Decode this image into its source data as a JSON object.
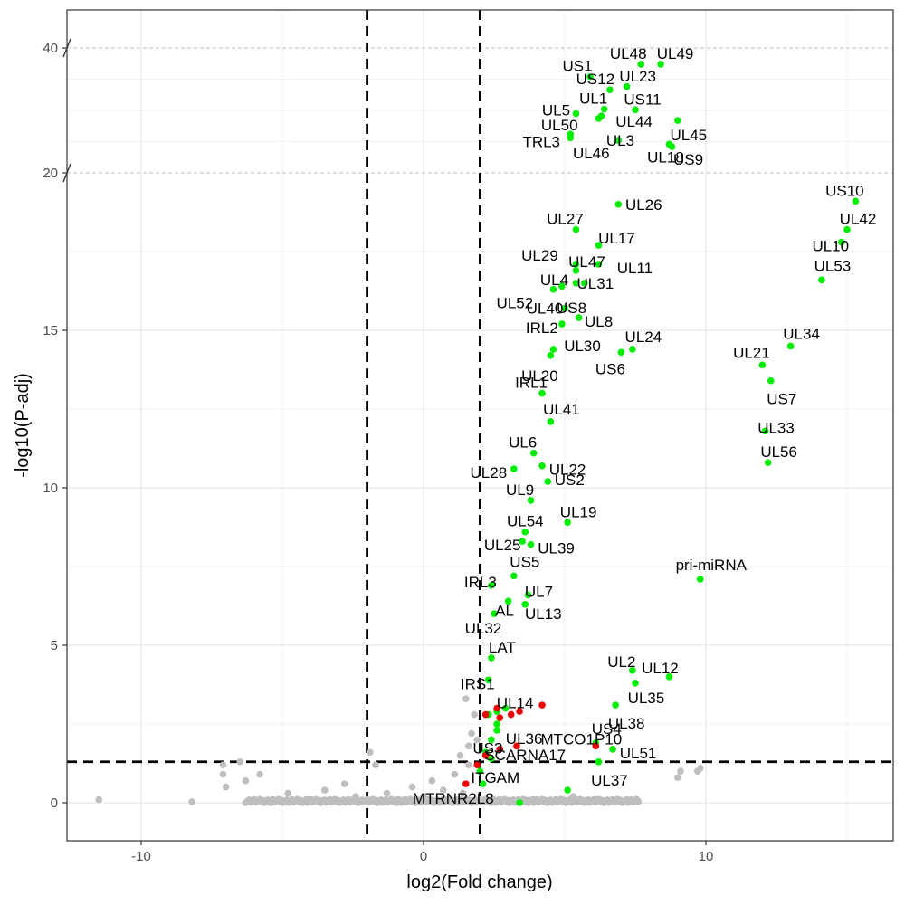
{
  "chart_data": {
    "type": "scatter",
    "title": "",
    "xlabel": "log2(Fold change)",
    "ylabel": "-log10(P-adj)",
    "xlim": [
      -12.5,
      16.5
    ],
    "x_ticks": [
      -10,
      0,
      10
    ],
    "x_tick_labels": [
      "-10",
      "0",
      "10"
    ],
    "y_ticks": [
      0,
      5,
      10,
      15,
      20,
      40
    ],
    "y_tick_labels": [
      "0",
      "5",
      "10",
      "15",
      "20",
      "40"
    ],
    "y_axis_break": {
      "note": "broken axis: upper segment spans 20 to 40",
      "lower_range": [
        0,
        20
      ],
      "upper_range": [
        20,
        40
      ]
    },
    "grid": true,
    "fold_change_threshold": [
      -2,
      2
    ],
    "p_threshold": 1.3,
    "colors": {
      "significant": "#00ee00",
      "highlight": "#ee0000",
      "not_significant": "#bebebe",
      "threshold_line": "#000000"
    },
    "series": [
      {
        "color_key": "significant",
        "points": [
          {
            "label": "UL48",
            "x": 7.7,
            "y": 37.4
          },
          {
            "label": "UL49",
            "x": 8.4,
            "y": 37.4
          },
          {
            "label": "US1",
            "x": 5.9,
            "y": 35.4
          },
          {
            "label": "UL23",
            "x": 7.2,
            "y": 33.8
          },
          {
            "label": "US12",
            "x": 6.6,
            "y": 33.3
          },
          {
            "label": "UL1",
            "x": 6.4,
            "y": 30.2
          },
          {
            "label": "US11",
            "x": 7.5,
            "y": 30.1
          },
          {
            "label": "UL5",
            "x": 5.4,
            "y": 29.5
          },
          {
            "label": "UL44",
            "x": 6.3,
            "y": 29.1
          },
          {
            "label": "UL3",
            "x": 6.2,
            "y": 28.7
          },
          {
            "label": "UL45",
            "x": 9.0,
            "y": 28.4
          },
          {
            "label": "UL50",
            "x": 5.2,
            "y": 26.2
          },
          {
            "label": "TRL3",
            "x": 5.2,
            "y": 25.6
          },
          {
            "label": "UL46",
            "x": 6.9,
            "y": 25.2
          },
          {
            "label": "UL18",
            "x": 8.7,
            "y": 24.6
          },
          {
            "label": "US9",
            "x": 8.8,
            "y": 24.2
          },
          {
            "label": "US10",
            "x": 15.3,
            "y": 19.1
          },
          {
            "label": "UL26",
            "x": 6.9,
            "y": 19.0
          },
          {
            "label": "UL42",
            "x": 15.0,
            "y": 18.2
          },
          {
            "label": "UL27",
            "x": 5.4,
            "y": 18.2
          },
          {
            "label": "UL10",
            "x": 14.8,
            "y": 17.8
          },
          {
            "label": "UL17",
            "x": 6.2,
            "y": 17.7
          },
          {
            "label": "UL11",
            "x": 6.2,
            "y": 17.1
          },
          {
            "label": "UL29",
            "x": 5.4,
            "y": 17.1
          },
          {
            "label": "UL47",
            "x": 5.4,
            "y": 16.9
          },
          {
            "label": "UL53",
            "x": 14.1,
            "y": 16.6
          },
          {
            "label": "UL31",
            "x": 5.7,
            "y": 16.5
          },
          {
            "label": "UL4",
            "x": 5.4,
            "y": 16.5
          },
          {
            "label": "UL52",
            "x": 4.9,
            "y": 16.4
          },
          {
            "label": "US8",
            "x": 4.6,
            "y": 16.3
          },
          {
            "label": "UL40",
            "x": 5.0,
            "y": 15.7
          },
          {
            "label": "UL8",
            "x": 5.5,
            "y": 15.4
          },
          {
            "label": "IRL2",
            "x": 4.9,
            "y": 15.2
          },
          {
            "label": "UL34",
            "x": 13.0,
            "y": 14.5
          },
          {
            "label": "UL24",
            "x": 7.4,
            "y": 14.4
          },
          {
            "label": "UL30",
            "x": 4.6,
            "y": 14.4
          },
          {
            "label": "US6",
            "x": 7.0,
            "y": 14.3
          },
          {
            "label": "UL20",
            "x": 4.5,
            "y": 14.2
          },
          {
            "label": "UL21",
            "x": 12.0,
            "y": 13.9
          },
          {
            "label": "US7",
            "x": 12.3,
            "y": 13.4
          },
          {
            "label": "IRL1",
            "x": 4.2,
            "y": 13.0
          },
          {
            "label": "UL41",
            "x": 4.5,
            "y": 12.1
          },
          {
            "label": "UL33",
            "x": 12.1,
            "y": 11.8
          },
          {
            "label": "UL6",
            "x": 3.9,
            "y": 11.1
          },
          {
            "label": "UL56",
            "x": 12.2,
            "y": 10.8
          },
          {
            "label": "UL22",
            "x": 4.2,
            "y": 10.7
          },
          {
            "label": "UL28",
            "x": 3.2,
            "y": 10.6
          },
          {
            "label": "US2",
            "x": 4.4,
            "y": 10.2
          },
          {
            "label": "UL9",
            "x": 3.8,
            "y": 9.6
          },
          {
            "label": "UL19",
            "x": 5.1,
            "y": 8.9
          },
          {
            "label": "UL54",
            "x": 3.6,
            "y": 8.6
          },
          {
            "label": "UL25",
            "x": 3.5,
            "y": 8.3
          },
          {
            "label": "UL39",
            "x": 3.8,
            "y": 8.2
          },
          {
            "label": "US5",
            "x": 3.2,
            "y": 7.2
          },
          {
            "label": "pri-miRNA",
            "x": 9.8,
            "y": 7.1
          },
          {
            "label": "IRL3",
            "x": 2.4,
            "y": 6.9
          },
          {
            "label": "UL7",
            "x": 3.7,
            "y": 6.6
          },
          {
            "label": "AL",
            "x": 3.0,
            "y": 6.4
          },
          {
            "label": "UL13",
            "x": 3.6,
            "y": 6.3
          },
          {
            "label": "UL32",
            "x": 2.5,
            "y": 6.0
          },
          {
            "label": "LAT",
            "x": 2.4,
            "y": 4.6
          },
          {
            "label": "UL2",
            "x": 7.4,
            "y": 4.2
          },
          {
            "label": "UL12",
            "x": 8.7,
            "y": 4.0
          },
          {
            "label": "IRS1",
            "x": 2.3,
            "y": 3.9
          },
          {
            "label": "UL35",
            "x": 7.5,
            "y": 3.8
          },
          {
            "label": "UL38",
            "x": 6.8,
            "y": 3.1
          },
          {
            "label": "UL36",
            "x": 2.6,
            "y": 2.5
          },
          {
            "label": "US4",
            "x": 6.1,
            "y": 1.9
          },
          {
            "label": "UL51",
            "x": 6.7,
            "y": 1.7
          },
          {
            "label": "US3",
            "x": 2.4,
            "y": 1.4
          },
          {
            "label": "UL37",
            "x": 6.2,
            "y": 1.3
          },
          {
            "label": "",
            "x": 2.9,
            "y": 3.0
          },
          {
            "label": "",
            "x": 2.6,
            "y": 2.9
          },
          {
            "label": "",
            "x": 2.3,
            "y": 2.8
          },
          {
            "label": "",
            "x": 2.6,
            "y": 2.3
          },
          {
            "label": "",
            "x": 2.4,
            "y": 2.0
          },
          {
            "label": "",
            "x": 2.2,
            "y": 1.6
          },
          {
            "label": "",
            "x": 2.0,
            "y": 1.0
          },
          {
            "label": "",
            "x": 2.1,
            "y": 0.6
          },
          {
            "label": "",
            "x": 3.4,
            "y": 0.0
          },
          {
            "label": "",
            "x": 5.1,
            "y": 0.4
          }
        ]
      },
      {
        "color_key": "highlight",
        "points": [
          {
            "label": "UL14",
            "x": 2.6,
            "y": 3.0
          },
          {
            "label": "",
            "x": 4.2,
            "y": 3.1
          },
          {
            "label": "",
            "x": 3.4,
            "y": 2.9
          },
          {
            "label": "",
            "x": 2.7,
            "y": 2.7
          },
          {
            "label": "",
            "x": 3.1,
            "y": 2.8
          },
          {
            "label": "",
            "x": 2.2,
            "y": 2.8
          },
          {
            "label": "MTCO1P10",
            "x": 6.1,
            "y": 1.8
          },
          {
            "label": "",
            "x": 3.3,
            "y": 1.8
          },
          {
            "label": "SCARNA17",
            "x": 2.7,
            "y": 1.7
          },
          {
            "label": "",
            "x": 2.2,
            "y": 1.5
          },
          {
            "label": "ITGAM",
            "x": 1.9,
            "y": 1.2
          },
          {
            "label": "MTRNR2L8",
            "x": 1.5,
            "y": 0.6
          }
        ]
      },
      {
        "color_key": "not_significant",
        "points": [
          {
            "label": "",
            "x": -11.5,
            "y": 0.1
          },
          {
            "label": "",
            "x": -8.2,
            "y": 0.03
          },
          {
            "label": "",
            "x": -7.1,
            "y": 1.2
          },
          {
            "label": "",
            "x": -7.1,
            "y": 0.9
          },
          {
            "label": "",
            "x": -7.0,
            "y": 0.5
          },
          {
            "label": "",
            "x": -6.5,
            "y": 1.3
          },
          {
            "label": "",
            "x": -6.3,
            "y": 0.7
          },
          {
            "label": "",
            "x": -5.8,
            "y": 0.9
          },
          {
            "label": "",
            "x": -6.0,
            "y": 0.05
          },
          {
            "label": "",
            "x": -5.4,
            "y": 0.0
          },
          {
            "label": "",
            "x": -4.8,
            "y": 0.3
          },
          {
            "label": "",
            "x": -4.1,
            "y": 0.1
          },
          {
            "label": "",
            "x": -3.5,
            "y": 0.4
          },
          {
            "label": "",
            "x": -2.8,
            "y": 0.6
          },
          {
            "label": "",
            "x": -2.4,
            "y": 0.2
          },
          {
            "label": "",
            "x": -1.9,
            "y": 1.6
          },
          {
            "label": "",
            "x": -1.7,
            "y": 1.2
          },
          {
            "label": "",
            "x": -1.3,
            "y": 0.3
          },
          {
            "label": "",
            "x": -0.9,
            "y": 0.1
          },
          {
            "label": "",
            "x": -0.4,
            "y": 0.5
          },
          {
            "label": "",
            "x": 0.0,
            "y": 0.2
          },
          {
            "label": "",
            "x": 0.3,
            "y": 0.7
          },
          {
            "label": "",
            "x": 0.7,
            "y": 0.4
          },
          {
            "label": "",
            "x": 1.1,
            "y": 0.9
          },
          {
            "label": "",
            "x": 1.4,
            "y": 0.3
          },
          {
            "label": "",
            "x": 1.7,
            "y": 2.2
          },
          {
            "label": "",
            "x": 1.6,
            "y": 1.8
          },
          {
            "label": "",
            "x": 1.5,
            "y": 3.3
          },
          {
            "label": "",
            "x": 1.8,
            "y": 2.8
          },
          {
            "label": "",
            "x": 1.6,
            "y": 1.2
          },
          {
            "label": "",
            "x": 1.9,
            "y": 2.0
          },
          {
            "label": "",
            "x": 1.3,
            "y": 1.5
          },
          {
            "label": "",
            "x": 3.9,
            "y": 0.1
          },
          {
            "label": "",
            "x": 4.6,
            "y": 0.05
          },
          {
            "label": "",
            "x": 5.3,
            "y": 0.2
          },
          {
            "label": "",
            "x": 6.1,
            "y": 0.1
          },
          {
            "label": "",
            "x": 6.6,
            "y": 0.05
          },
          {
            "label": "",
            "x": 7.2,
            "y": 0.1
          },
          {
            "label": "",
            "x": 7.6,
            "y": 0.05
          },
          {
            "label": "",
            "x": 9.1,
            "y": 1.0
          },
          {
            "label": "",
            "x": 9.7,
            "y": 1.0
          },
          {
            "label": "",
            "x": 9.8,
            "y": 1.1
          },
          {
            "label": "",
            "x": 9.0,
            "y": 0.8
          }
        ]
      }
    ],
    "dense_baseline_band": {
      "color_key": "not_significant",
      "x_from": -6.3,
      "x_to": 7.6,
      "y": 0.0,
      "count": 230
    }
  }
}
